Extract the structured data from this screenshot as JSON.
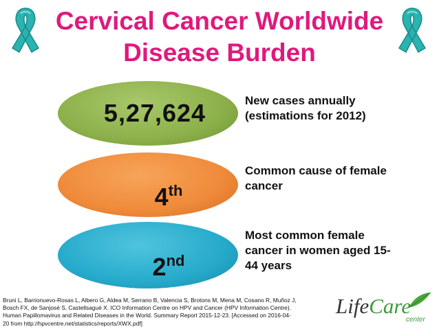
{
  "title": {
    "line1": "Cervical Cancer Worldwide",
    "line2": "Disease Burden"
  },
  "icons": {
    "left": "awareness-ribbon-icon",
    "right": "awareness-ribbon-icon",
    "ribbon_color": "#2ab3b0"
  },
  "stats": [
    {
      "value": "5,27,624",
      "color": "#8cb04a",
      "desc_line1": "New cases annually",
      "desc_line2": "(estimations for 2012)"
    },
    {
      "value": "4",
      "suffix": "th",
      "color": "#ef8a3a",
      "desc_line1": "Common cause of female",
      "desc_line2": "cancer"
    },
    {
      "value": "2",
      "suffix": "nd",
      "color": "#26aacb",
      "desc_line1": "Most common female",
      "desc_line2": "cancer in women aged 15-",
      "desc_line3": "44 years"
    }
  ],
  "citation": {
    "line1": "Bruni L, Barrionuevo-Rosas L, Albero G, Aldea M, Serrano B, Valencia S, Brotons M, Mena M, Cosano R, Muñoz J,",
    "line2": "Bosch FX, de Sanjosé S, Castellsagué X. ICO Information Centre on HPV and Cancer (HPV Information Centre).",
    "line3": "Human Papillomavirus and Related Diseases in the World. Summary Report 2015-12-23. [Accessed on 2016-04-",
    "line4": "20 from http://hpvcentre.net/statistics/reports/XWX.pdf]"
  },
  "logo": {
    "part1": "Life",
    "part2": "Care",
    "sub": "center"
  }
}
